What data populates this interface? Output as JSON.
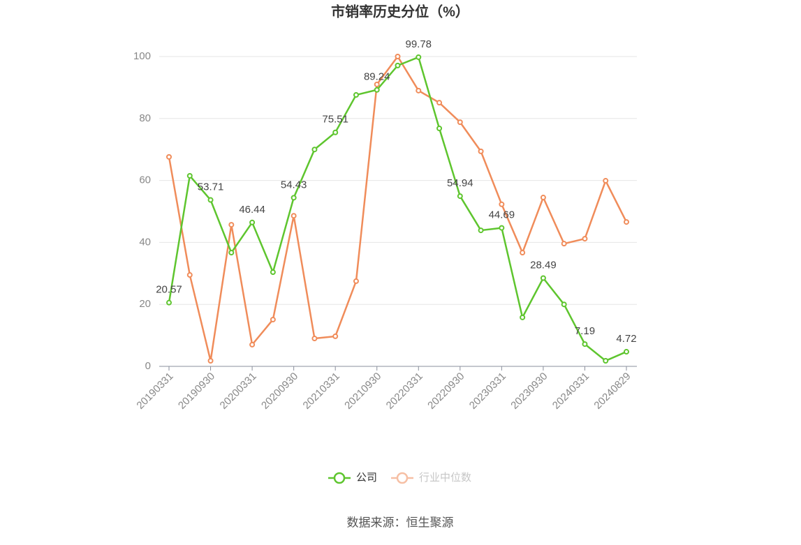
{
  "chart_data": {
    "type": "line",
    "title": "市销率历史分位（%）",
    "categories": [
      "20190331",
      null,
      "20190930",
      null,
      "20200331",
      null,
      "20200930",
      null,
      "20210331",
      null,
      "20210930",
      null,
      "20220331",
      null,
      "20220930",
      null,
      "20230331",
      null,
      "20230930",
      null,
      "20240331",
      null,
      "20240829"
    ],
    "series": [
      {
        "name": "公司",
        "color": "#5ec52e",
        "values": [
          20.57,
          61.5,
          53.71,
          36.7,
          46.44,
          30.4,
          54.43,
          70.0,
          75.51,
          87.6,
          89.24,
          97.1,
          99.78,
          76.8,
          54.94,
          43.9,
          44.69,
          15.8,
          28.49,
          20.0,
          7.19,
          1.8,
          4.72
        ]
      },
      {
        "name": "行业中位数",
        "color": "#f08c5a",
        "values": [
          67.6,
          29.5,
          1.8,
          45.7,
          7.0,
          15.1,
          48.6,
          9.0,
          9.7,
          27.5,
          91.0,
          100,
          89.0,
          85.1,
          78.8,
          69.4,
          52.3,
          36.7,
          54.5,
          39.6,
          41.2,
          59.9,
          46.6
        ]
      }
    ],
    "ylim": [
      0,
      100
    ],
    "yticks": [
      0,
      20,
      40,
      60,
      80,
      100
    ],
    "grid": true,
    "legend": "bottom",
    "source": "数据来源：恒生聚源"
  }
}
